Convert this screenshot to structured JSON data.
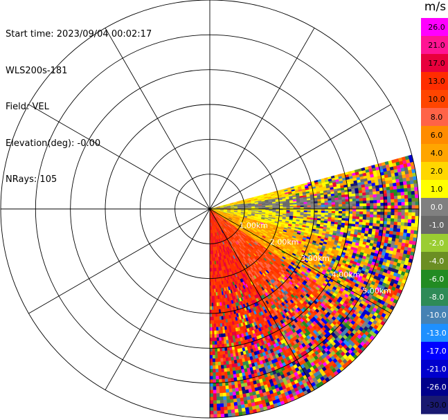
{
  "info": {
    "start_time": "Start time: 2023/09/04 00:02:17",
    "instrument": "WLS200s-181",
    "field": "Field: VEL",
    "elevation": "Elevation(deg): -0.00",
    "nrays": "NRays: 105"
  },
  "chart_data": {
    "type": "heatmap",
    "projection": "polar-ppi",
    "field": "VEL",
    "unit": "m/s",
    "max_range_km": 6.0,
    "range_rings_km": [
      1.0,
      2.0,
      3.0,
      4.0,
      5.0,
      6.0
    ],
    "range_labels": [
      "1.00km",
      "2.00km",
      "3.00km",
      "4.00km",
      "5.00km"
    ],
    "spoke_step_deg": 30,
    "sector_azimuth_deg": [
      75,
      180
    ],
    "n_rays": 105,
    "colorbar": {
      "title": "m/s",
      "ticks": [
        "26.0",
        "21.0",
        "17.0",
        "13.0",
        "10.0",
        "8.0",
        "6.0",
        "4.0",
        "2.0",
        "1.0",
        "0.0",
        "-1.0",
        "-2.0",
        "-4.0",
        "-6.0",
        "-8.0",
        "-10.0",
        "-13.0",
        "-17.0",
        "-21.0",
        "-26.0",
        "-30.0"
      ],
      "colors": [
        "#ff00ff",
        "#ff1493",
        "#e8003c",
        "#ff2d00",
        "#ff4500",
        "#ff6347",
        "#ff8c00",
        "#ffa500",
        "#ffd700",
        "#ffff00",
        "#808080",
        "#696969",
        "#9acd32",
        "#6b8e23",
        "#228b22",
        "#2e8b57",
        "#4682b4",
        "#1e90ff",
        "#0000ff",
        "#0000cd",
        "#00008b",
        "#191970"
      ]
    },
    "velocity_pattern": [
      {
        "azimuth_deg": [
          75,
          90
        ],
        "range_km": [
          0,
          6
        ],
        "dominant": "0.0",
        "note": "near-zero gray/green band"
      },
      {
        "azimuth_deg": [
          90,
          125
        ],
        "range_km": [
          0,
          6
        ],
        "dominant": "4.0",
        "note": "yellow to orange"
      },
      {
        "azimuth_deg": [
          125,
          180
        ],
        "range_km": [
          0,
          6
        ],
        "dominant": "10.0",
        "note": "orange-red to pink"
      }
    ]
  }
}
